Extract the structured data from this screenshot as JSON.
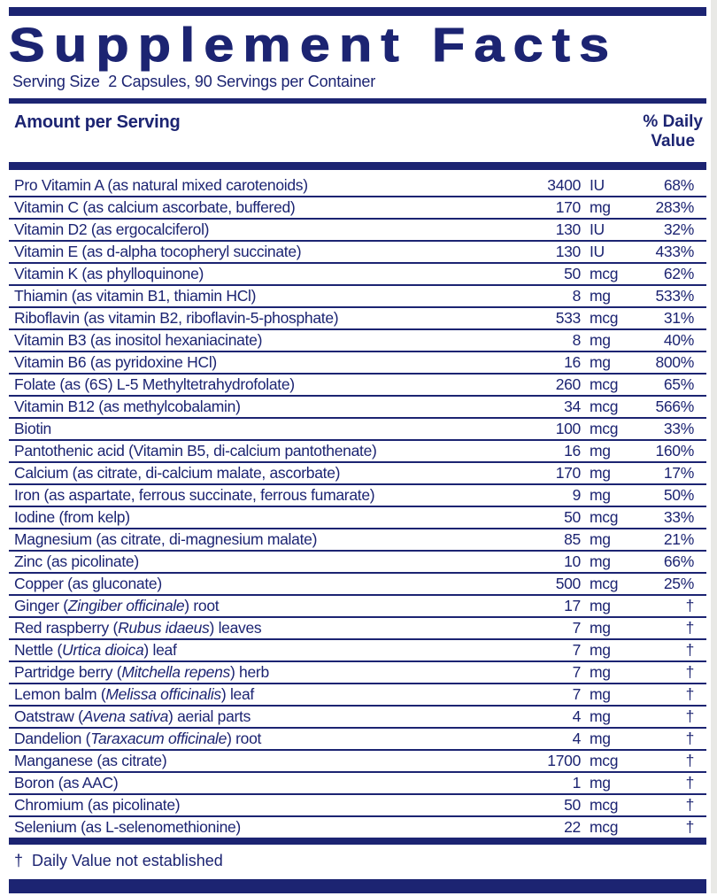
{
  "page": {
    "title": "Supplement Facts",
    "serving_line": "Serving Size  2 Capsules, 90 Servings per Container",
    "amount_header": "Amount per Serving",
    "dv_header_line1": "% Daily",
    "dv_header_line2": "Value",
    "footnote": "†  Daily Value not established",
    "accent_color": "#1c2472",
    "dagger_symbol": "†"
  },
  "rows": [
    {
      "pre": "Pro Vitamin A (as natural mixed carotenoids)",
      "it": "",
      "post": "",
      "amount": "3400",
      "unit": "IU",
      "dv": "68%"
    },
    {
      "pre": "Vitamin C (as calcium ascorbate, buffered)",
      "it": "",
      "post": "",
      "amount": "170",
      "unit": "mg",
      "dv": "283%"
    },
    {
      "pre": "Vitamin D2 (as ergocalciferol)",
      "it": "",
      "post": "",
      "amount": "130",
      "unit": "IU",
      "dv": "32%"
    },
    {
      "pre": "Vitamin E (as d-alpha tocopheryl succinate)",
      "it": "",
      "post": "",
      "amount": "130",
      "unit": "IU",
      "dv": "433%"
    },
    {
      "pre": "Vitamin K (as phylloquinone)",
      "it": "",
      "post": "",
      "amount": "50",
      "unit": "mcg",
      "dv": "62%"
    },
    {
      "pre": "Thiamin (as vitamin B1, thiamin HCl)",
      "it": "",
      "post": "",
      "amount": "8",
      "unit": "mg",
      "dv": "533%"
    },
    {
      "pre": "Riboflavin (as vitamin B2, riboflavin-5-phosphate)",
      "it": "",
      "post": "",
      "amount": "533",
      "unit": "mcg",
      "dv": "31%"
    },
    {
      "pre": "Vitamin B3 (as inositol hexaniacinate)",
      "it": "",
      "post": "",
      "amount": "8",
      "unit": "mg",
      "dv": "40%"
    },
    {
      "pre": "Vitamin B6 (as pyridoxine HCl)",
      "it": "",
      "post": "",
      "amount": "16",
      "unit": "mg",
      "dv": "800%"
    },
    {
      "pre": "Folate (as (6S) L-5 Methyltetrahydrofolate)",
      "it": "",
      "post": "",
      "amount": "260",
      "unit": "mcg",
      "dv": "65%"
    },
    {
      "pre": "Vitamin B12 (as methylcobalamin)",
      "it": "",
      "post": "",
      "amount": "34",
      "unit": "mcg",
      "dv": "566%"
    },
    {
      "pre": "Biotin",
      "it": "",
      "post": "",
      "amount": "100",
      "unit": "mcg",
      "dv": "33%"
    },
    {
      "pre": "Pantothenic acid (Vitamin B5, di-calcium pantothenate)",
      "it": "",
      "post": "",
      "amount": "16",
      "unit": "mg",
      "dv": "160%"
    },
    {
      "pre": "Calcium (as citrate, di-calcium malate, ascorbate)",
      "it": "",
      "post": "",
      "amount": "170",
      "unit": "mg",
      "dv": "17%"
    },
    {
      "pre": "Iron (as aspartate, ferrous succinate, ferrous fumarate)",
      "it": "",
      "post": "",
      "amount": "9",
      "unit": "mg",
      "dv": "50%"
    },
    {
      "pre": "Iodine (from kelp)",
      "it": "",
      "post": "",
      "amount": "50",
      "unit": "mcg",
      "dv": "33%"
    },
    {
      "pre": "Magnesium (as citrate, di-magnesium malate)",
      "it": "",
      "post": "",
      "amount": "85",
      "unit": "mg",
      "dv": "21%"
    },
    {
      "pre": "Zinc (as picolinate)",
      "it": "",
      "post": "",
      "amount": "10",
      "unit": "mg",
      "dv": "66%"
    },
    {
      "pre": "Copper (as gluconate)",
      "it": "",
      "post": "",
      "amount": "500",
      "unit": "mcg",
      "dv": "25%"
    },
    {
      "pre": "Ginger (",
      "it": "Zingiber officinale",
      "post": ") root",
      "amount": "17",
      "unit": "mg",
      "dv": "†"
    },
    {
      "pre": "Red raspberry (",
      "it": "Rubus idaeus",
      "post": ") leaves",
      "amount": "7",
      "unit": "mg",
      "dv": "†"
    },
    {
      "pre": "Nettle (",
      "it": "Urtica dioica",
      "post": ") leaf",
      "amount": "7",
      "unit": "mg",
      "dv": "†"
    },
    {
      "pre": "Partridge berry (",
      "it": "Mitchella repens",
      "post": ") herb",
      "amount": "7",
      "unit": "mg",
      "dv": "†"
    },
    {
      "pre": "Lemon balm (",
      "it": "Melissa officinalis",
      "post": ") leaf",
      "amount": "7",
      "unit": "mg",
      "dv": "†"
    },
    {
      "pre": "Oatstraw (",
      "it": "Avena sativa",
      "post": ") aerial parts",
      "amount": "4",
      "unit": "mg",
      "dv": "†"
    },
    {
      "pre": "Dandelion (",
      "it": "Taraxacum officinale",
      "post": ") root",
      "amount": "4",
      "unit": "mg",
      "dv": "†"
    },
    {
      "pre": "Manganese (as citrate)",
      "it": "",
      "post": "",
      "amount": "1700",
      "unit": "mcg",
      "dv": "†"
    },
    {
      "pre": "Boron (as AAC)",
      "it": "",
      "post": "",
      "amount": "1",
      "unit": "mg",
      "dv": "†"
    },
    {
      "pre": "Chromium (as picolinate)",
      "it": "",
      "post": "",
      "amount": "50",
      "unit": "mcg",
      "dv": "†"
    },
    {
      "pre": "Selenium (as L-selenomethionine)",
      "it": "",
      "post": "",
      "amount": "22",
      "unit": "mcg",
      "dv": "†"
    }
  ]
}
